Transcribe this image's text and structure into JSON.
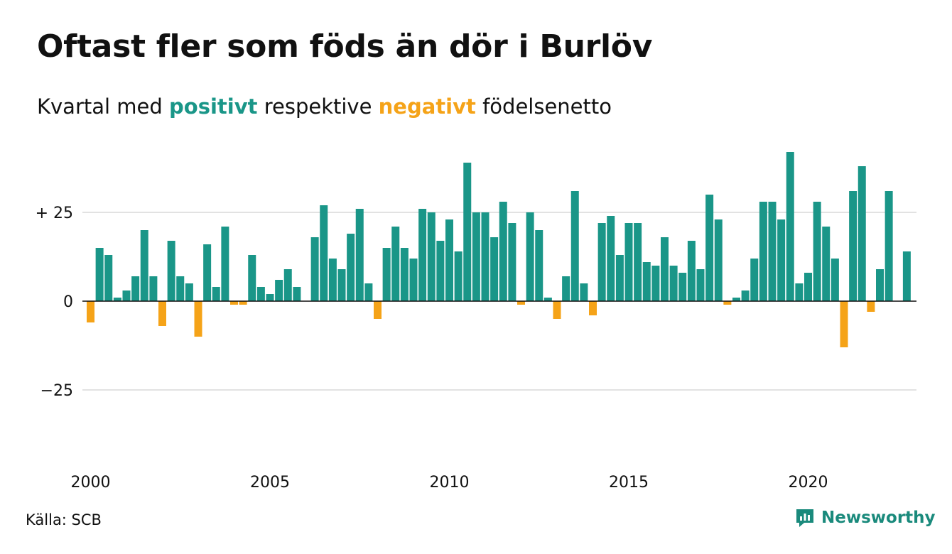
{
  "title": "Oftast fler som föds än dör i Burlöv",
  "subtitle": {
    "before": "Kvartal med",
    "positive_word": "positivt",
    "middle": "respektive",
    "negative_word": "negativt",
    "after": "födelsenetto"
  },
  "colors": {
    "positive": "#1a9688",
    "negative": "#f5a318",
    "gridline": "#e2e2e2",
    "zero_line": "#111111",
    "brand": "#1a8a7c"
  },
  "source": "Källa: SCB",
  "brand": {
    "name": "Newsworthy",
    "icon": "bar-chart-speech-bubble-icon"
  },
  "chart_data": {
    "type": "bar",
    "x_start": "2000 Q1",
    "period": "quarter",
    "ylim": [
      -50,
      50
    ],
    "y_ticks": [
      {
        "value": 25,
        "label": "+ 25"
      },
      {
        "value": 0,
        "label": "0"
      },
      {
        "value": -25,
        "label": "−25"
      }
    ],
    "x_ticks": [
      "2000",
      "2005",
      "2010",
      "2015",
      "2020"
    ],
    "grid": true,
    "values": [
      -6,
      15,
      13,
      1,
      3,
      7,
      20,
      7,
      -7,
      17,
      7,
      5,
      -10,
      16,
      4,
      21,
      -1,
      -1,
      13,
      4,
      2,
      6,
      9,
      4,
      0,
      18,
      27,
      12,
      9,
      19,
      26,
      5,
      -5,
      15,
      21,
      15,
      12,
      26,
      25,
      17,
      23,
      14,
      39,
      25,
      25,
      18,
      28,
      22,
      -1,
      25,
      20,
      1,
      -5,
      7,
      31,
      5,
      -4,
      22,
      24,
      13,
      22,
      22,
      11,
      10,
      18,
      10,
      8,
      17,
      9,
      30,
      23,
      -1,
      1,
      3,
      12,
      28,
      28,
      23,
      42,
      5,
      8,
      28,
      21,
      12,
      -13,
      31,
      38,
      -3,
      9,
      31,
      0,
      14
    ]
  }
}
